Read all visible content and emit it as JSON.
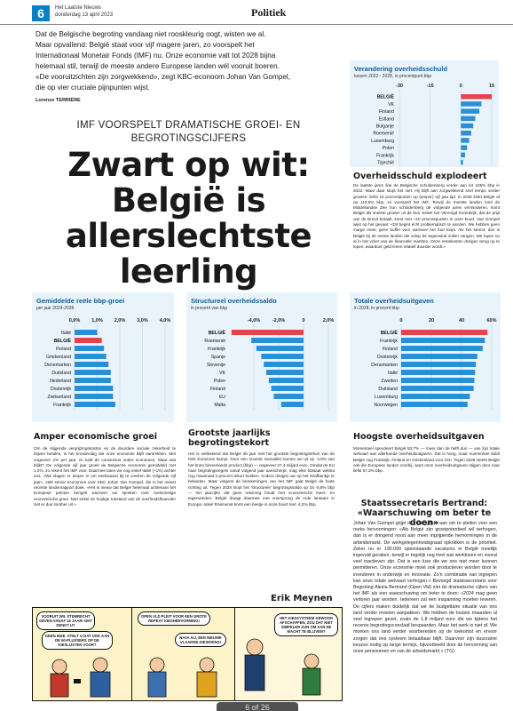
{
  "header": {
    "page_number": "6",
    "paper": "Het Laatste Nieuws",
    "date": "donderdag 13 april 2023",
    "section": "Politiek"
  },
  "intro": {
    "lines": [
      "Dat de Belgische begroting vandaag niet rooskleurig oogt, wisten we al.",
      "Maar opvallend: België staat voor vijf magere jaren, zo voorspelt het",
      "Internationaal Monetair Fonds (IMF) nu. Onze economie valt tot 2028 bijna",
      "helemaal stil, terwijl de meeste andere Europese landen wél vooruit boeren.",
      "«De vooruitzichten zijn zorgwekkend», zegt KBC-econoom Johan Van Gompel,",
      "die op vier cruciale pijnpunten wijst."
    ],
    "author": "Lorenzo TERRIÈRE"
  },
  "kicker": [
    "IMF VOORSPELT DRAMATISCHE GROEI- EN",
    "BEGROTINGSCIJFERS"
  ],
  "headline": [
    "Zwart op wit:",
    "België is",
    "allerslechtste",
    "leerling"
  ],
  "debt": {
    "title": "Verandering overheidsschuld",
    "subtitle": "tussen 2022 - 2028, in procentpunt bbp",
    "heading": "Overheidsschuld explodeert",
    "body": "De laatste jaren liite de Belgische schuldenberg verder aan tot 105% bbp in 2022. Maar daar stopt het niet. Hij blijft aan zorgwekkend snel tempo verder groeien: liefst 15 procentpunten op (amper) vijf jaar tijd. In 2028 klokt België af op 119,5% bbp, zo voorspelt het IMF. Terwijl de meeste landen rond de Middellandse Zee hun schuldenberg de volgende jaren verminderen, komt België als snelste groeier uit de bus. Enkel het Verenigd Koninkrijk, dat de prijs van de Brexit betaalt, komt met +10 procentpunten in onze buurt. Van Gompel wijst op het gevaar: «Dit begint écht problematisch te worden. We hebben geen marge meer, geen buffer voor wanneer het fout loopt. Als het stormt, dan is België bij de eerste landen die volop de tegenwind zullen vangen. We lopen nu al in het vizier van de financiële markten. Onze rentekosten dreigen terug op te lopen, waardoor geld lenen relatief duurder wordt.»"
  },
  "growth": {
    "title": "Gemiddelde reële bbp-groei",
    "subtitle": "per jaar 2024-2028",
    "heading": "Amper economische groei",
    "body": "Om de stijgende vergrijzingskosten en de duurdere sociale zekerheid te blijven betalen, is het broodnodig dat onze economie blijft aantrekken. Met ongeveer 2% per jaar, zo luidt de consensus onder economen. Maar wat blijkt? De volgende vijf jaar groeit de Belgische economie gemiddeld met 1,2%, zo rekent het IMF voor. Daarmee laten we nog enkel Italië (+1%) achter ons. «We slagen er amper in om werkwaard bij te creëren de volgende vijf jaar», stelt senior economen voor KBC Johan Van Gompel, die in het meest recente landenrapport doek. «Het is nieuw dat België helemaal achteraan het Europese peloton bengelt wanneer we spreken over toekomstige economische groei. Niet enkel de huidige toestand van de overheidsfinanciën ziet er dus somber uit.»"
  },
  "balance": {
    "title": "Structureel overheidssaldo",
    "subtitle": "in procent van bbp",
    "heading": "Grootste jaarlijks begrotingstekort",
    "body": "Het is welbekend dat België dit jaar met het grootste begrotingstekort van de hele Eurozone kampt. Door een recente meevaller komen we uit op -4,8% van het bruto binnenlands product (bbp) — ongeveer 27,4 miljard euro. Omdat de EU haar begrotingsregels vanaf volgend jaar aanscherpt, mag elke lidstaat weldra nog maximaal 3 procent tekort boeken. Anders dreigen we op het strafbankje te belanden. Maar volgens de berekeningen van het IMF gaat België de foute richting uit. Tegen 2028 loopt het 'structurele' begrotingssaldo op tot -5,8% bbp — het jaarcijfer dat geen rekening houdt met economische meer- en tegenwinden. België draagt daarmee met voorsprong de rode lantaarn in Europa: enkel Roemenië komt een beetje in onze buurt met -4,2% bbp."
  },
  "spending": {
    "title": "Totale overheidsuitgaven",
    "subtitle": "in 2028, in procent bbp",
    "heading": "Hoogste overheidsuitgaven",
    "body": "Momenteel spendeert België 53,7% — meer dan de helft dus — van zijn totale welvaart aan allerhande overheidsuitgaven. Dat is hoog, maar momenteel duldt België nog Frankrijk, Finland en Griekenland voor zich. Tegen 2028 steekt België ook die Europese landen voorbij, want onze overheidsuitgaven stijgen door naar liefst 57,2% bbp."
  },
  "staatssecretaris": {
    "heading": [
      "Staatssecretaris Bertrand:",
      "«Waarschuwing om beter te doen»"
    ],
    "body": "Johan Van Gompel grijpt de rode cijfers aan om te pleiten voor een reeks hervormingen: «Als België zijn groeipotentieel wil verhogen, dan is er dringend nood aan meer ingrijpende hervormingen in de arbeidsmarkt. De werkgelegenheidsgraad opkrikken is de prioriteit. Zeker nu er 190.000 openstaande vacatures in België moeilijk ingevuld geraken, terwijl er tegelijk nog heel wat werklozen en vooral veel inactieven zijn. Dat is een luxe die we ons niet meer kunnen permitteren. Onze economie moet ook productiever worden door te investeren in onderwijs en innovatie. Zo'n combinatie van ingrepen kan onze totale welvaart verhogen.» Bevoegd staatssecretaris voor Begroting Alexia Bertrand (Open Vld) ziet de dramatische cijfers van het IMF als een waarschuwing om beter te doen: «2024 mag geen verloren jaar worden. Iedereen zal een inspanning moeten leveren. De cijfers maken duidelijk dat we de budgettaire situatie van ons land verder moeten aanpakken. We hebben de loutste maanden al veel ingrepen gezet, zoals de 1,8 miljard euro die we tijdens het recente begrotingsconclaaf bespaarden. Maar het werk is niet af. We moeten ons land verder voorbereiden op de toekomst en ervoor zorgen dat ons systeem betaalbaar blijft. Daarvoor zijn duurzame keuzes nodig op lange termijn, bijvoorbeeld door de hervorming van onze pensioenen en van de arbeidsmarkt.» (TG)"
  },
  "cartoon": {
    "credit": "Erik Meynen",
    "bubbles": [
      "VOORUIT WIL STEMRECHT GEVEN VANAF 16 JAAR! WAT DENKT U?",
      "GEEN IDEE. STELT U DAT OOK AAN DE 60-PLUSSERS OP DE KIESLIJSTEN VOOR?",
      "OPEN VLD PLEIT VOOR EEN GROTE REPEAT KIESHERVORMING!",
      "NAVA AIJ, EEN NIEUWE VLAAMSE KIESKRING!",
      "HET KIESSYSTEEM GEWOON AFSCHAFFEN, ZOU DAT NIET SIMPELER ZIJN OM AAN DE MACHT TE BLIJVEN?"
    ]
  },
  "pager": "6 of 26",
  "chart_data": [
    {
      "type": "bar",
      "title": "Verandering overheidsschuld",
      "subtitle": "tussen 2022 - 2028, in procentpunt bbp",
      "categories": [
        "BELGIË",
        "VK",
        "Finland",
        "Estland",
        "Bulgarije",
        "Roemenië",
        "Luxemburg",
        "Polen",
        "Frankrijk",
        "Tsjechië"
      ],
      "values": [
        15,
        10,
        9,
        7,
        6,
        5,
        4,
        3,
        2,
        1
      ],
      "xticks": [
        "-30",
        "-15",
        "0",
        "15"
      ],
      "xlim": [
        -30,
        15
      ],
      "highlight": "BELGIË",
      "orientation": "horizontal"
    },
    {
      "type": "bar",
      "title": "Gemiddelde reële bbp-groei",
      "subtitle": "per jaar 2024-2028",
      "categories": [
        "Italië",
        "BELGIË",
        "Finland",
        "Griekenland",
        "Denemarken",
        "Duitsland",
        "Nederland",
        "Oostenrijk",
        "Zwitserland",
        "Frankrijk"
      ],
      "values": [
        1.0,
        1.2,
        1.3,
        1.4,
        1.5,
        1.6,
        1.6,
        1.7,
        1.7,
        1.8
      ],
      "xticks": [
        "0,0%",
        "1,0%",
        "2,0%",
        "3,0%",
        "4,0%"
      ],
      "xlim": [
        0,
        4
      ],
      "highlight": "BELGIË",
      "orientation": "horizontal"
    },
    {
      "type": "bar",
      "title": "Structureel overheidssaldo",
      "subtitle": "in procent van bbp",
      "categories": [
        "BELGIË",
        "Roemenië",
        "Frankrijk",
        "Spanje",
        "Slovenije",
        "VK",
        "Polen",
        "Finland",
        "EU",
        "Malta"
      ],
      "values": [
        -5.8,
        -4.2,
        -3.8,
        -3.4,
        -3.2,
        -3.0,
        -2.8,
        -2.6,
        -2.4,
        -1.8
      ],
      "xticks": [
        "-4,0%",
        "-2,0%",
        "0",
        "2,0%"
      ],
      "xlim": [
        -6,
        2
      ],
      "highlight": "BELGIË",
      "orientation": "horizontal"
    },
    {
      "type": "bar",
      "title": "Totale overheidsuitgaven",
      "subtitle": "in 2028, in procent bbp",
      "categories": [
        "BELGIË",
        "Frankrijk",
        "Finland",
        "Oostenrijk",
        "Denemarken",
        "Italië",
        "Zweden",
        "Duitsland",
        "Luxemburg",
        "Noorwegen"
      ],
      "values": [
        57.2,
        55.5,
        54.0,
        50.5,
        49.5,
        49.0,
        48.5,
        48.0,
        45.5,
        44.0
      ],
      "xticks": [
        "0",
        "20",
        "40",
        "60%"
      ],
      "xlim": [
        0,
        60
      ],
      "highlight": "BELGIË",
      "orientation": "horizontal"
    }
  ],
  "colors": {
    "accent": "#0a7fc4",
    "bar": "#2b8fd6",
    "highlight": "#e8434b",
    "panel": "#e8f3fb"
  }
}
